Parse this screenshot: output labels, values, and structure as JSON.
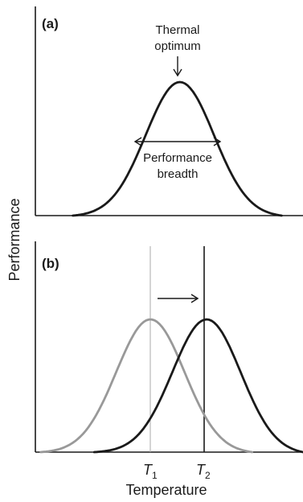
{
  "figure": {
    "ylabel": "Performance",
    "xlabel": "Temperature"
  },
  "colors": {
    "axis": "#1a1a1a",
    "curve_dark": "#1a1a1a",
    "curve_gray": "#999999",
    "t1_line": "#aaaaaa",
    "t2_line": "#1a1a1a"
  },
  "chart_data": [
    {
      "type": "line",
      "panel_label": "(a)",
      "annotations": [
        {
          "text_lines": [
            "Thermal",
            "optimum"
          ],
          "target": "peak"
        },
        {
          "text_lines": [
            "Performance",
            "breadth"
          ],
          "target": "width"
        }
      ],
      "series": [
        {
          "color": "#1a1a1a",
          "center": 0.54,
          "half_width": 0.83,
          "left_start": 0.14,
          "right_end": 0.92
        }
      ]
    },
    {
      "type": "line",
      "panel_label": "(b)",
      "tick_labels": [
        {
          "main": "T",
          "sub": "1",
          "at": "T1"
        },
        {
          "main": "T",
          "sub": "2",
          "at": "T2"
        }
      ],
      "series": [
        {
          "color": "#999999",
          "center": 0.43,
          "half_width": 0.83,
          "left_start": 0.02,
          "right_end": 0.81
        },
        {
          "color": "#1a1a1a",
          "center": 0.64,
          "half_width": 0.83,
          "left_start": 0.22,
          "right_end": 1.0
        }
      ],
      "vertical_lines": [
        "T1",
        "T2"
      ],
      "shift_arrow": "right"
    }
  ]
}
